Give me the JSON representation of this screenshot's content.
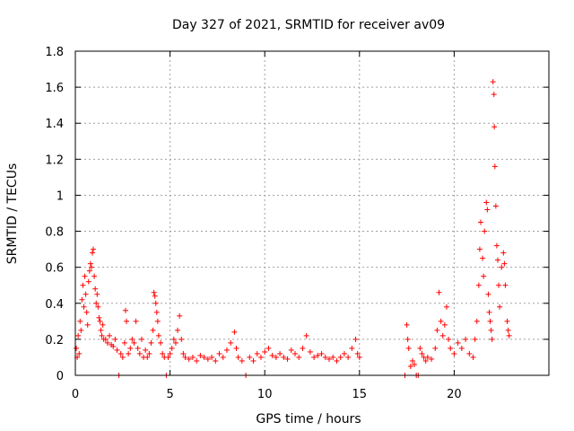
{
  "chart_data": {
    "type": "scatter",
    "title": "Day 327 of 2021, SRMTID for receiver av09",
    "xlabel": "GPS time / hours",
    "ylabel": "SRMTID / TECUs",
    "xlim": [
      0,
      25
    ],
    "ylim": [
      0,
      1.8
    ],
    "xticks": [
      0,
      5,
      10,
      15,
      20
    ],
    "xtick_labels": [
      "0",
      "5",
      "10",
      "15",
      "20"
    ],
    "yticks": [
      0,
      0.2,
      0.4,
      0.6,
      0.8,
      1.0,
      1.2,
      1.4,
      1.6,
      1.8
    ],
    "ytick_labels": [
      "0",
      "0.2",
      "0.4",
      "0.6",
      "0.8",
      "1",
      "1.2",
      "1.4",
      "1.6",
      "1.8"
    ],
    "grid": true,
    "marker": "+",
    "marker_color": "#ff0000",
    "series": [
      {
        "name": "SRMTID",
        "points": [
          [
            0.05,
            0.15
          ],
          [
            0.1,
            0.1
          ],
          [
            0.15,
            0.22
          ],
          [
            0.2,
            0.12
          ],
          [
            0.25,
            0.3
          ],
          [
            0.3,
            0.25
          ],
          [
            0.35,
            0.42
          ],
          [
            0.4,
            0.5
          ],
          [
            0.45,
            0.38
          ],
          [
            0.5,
            0.55
          ],
          [
            0.55,
            0.45
          ],
          [
            0.6,
            0.35
          ],
          [
            0.65,
            0.28
          ],
          [
            0.7,
            0.52
          ],
          [
            0.75,
            0.58
          ],
          [
            0.8,
            0.62
          ],
          [
            0.85,
            0.6
          ],
          [
            0.9,
            0.68
          ],
          [
            0.95,
            0.7
          ],
          [
            1.0,
            0.55
          ],
          [
            1.05,
            0.48
          ],
          [
            1.1,
            0.4
          ],
          [
            1.15,
            0.45
          ],
          [
            1.2,
            0.38
          ],
          [
            1.25,
            0.32
          ],
          [
            1.3,
            0.3
          ],
          [
            1.35,
            0.25
          ],
          [
            1.4,
            0.22
          ],
          [
            1.45,
            0.28
          ],
          [
            1.5,
            0.2
          ],
          [
            1.6,
            0.2
          ],
          [
            1.7,
            0.18
          ],
          [
            1.8,
            0.22
          ],
          [
            1.9,
            0.17
          ],
          [
            2.0,
            0.16
          ],
          [
            2.1,
            0.2
          ],
          [
            2.2,
            0.14
          ],
          [
            2.3,
            0.0
          ],
          [
            2.4,
            0.12
          ],
          [
            2.5,
            0.1
          ],
          [
            2.6,
            0.18
          ],
          [
            2.65,
            0.36
          ],
          [
            2.7,
            0.3
          ],
          [
            2.8,
            0.12
          ],
          [
            2.9,
            0.15
          ],
          [
            3.0,
            0.2
          ],
          [
            3.1,
            0.18
          ],
          [
            3.2,
            0.3
          ],
          [
            3.3,
            0.15
          ],
          [
            3.4,
            0.12
          ],
          [
            3.5,
            0.2
          ],
          [
            3.6,
            0.1
          ],
          [
            3.7,
            0.14
          ],
          [
            3.8,
            0.1
          ],
          [
            3.9,
            0.12
          ],
          [
            4.0,
            0.18
          ],
          [
            4.1,
            0.25
          ],
          [
            4.15,
            0.46
          ],
          [
            4.2,
            0.44
          ],
          [
            4.25,
            0.4
          ],
          [
            4.3,
            0.35
          ],
          [
            4.35,
            0.3
          ],
          [
            4.4,
            0.22
          ],
          [
            4.5,
            0.18
          ],
          [
            4.6,
            0.12
          ],
          [
            4.7,
            0.1
          ],
          [
            4.8,
            0.0
          ],
          [
            4.9,
            0.1
          ],
          [
            5.0,
            0.12
          ],
          [
            5.1,
            0.15
          ],
          [
            5.2,
            0.2
          ],
          [
            5.3,
            0.18
          ],
          [
            5.4,
            0.25
          ],
          [
            5.5,
            0.33
          ],
          [
            5.6,
            0.2
          ],
          [
            5.7,
            0.12
          ],
          [
            5.8,
            0.1
          ],
          [
            6.0,
            0.09
          ],
          [
            6.2,
            0.1
          ],
          [
            6.4,
            0.08
          ],
          [
            6.6,
            0.11
          ],
          [
            6.8,
            0.1
          ],
          [
            7.0,
            0.09
          ],
          [
            7.2,
            0.1
          ],
          [
            7.4,
            0.08
          ],
          [
            7.6,
            0.12
          ],
          [
            7.8,
            0.1
          ],
          [
            8.0,
            0.14
          ],
          [
            8.2,
            0.18
          ],
          [
            8.4,
            0.24
          ],
          [
            8.5,
            0.15
          ],
          [
            8.6,
            0.1
          ],
          [
            8.8,
            0.08
          ],
          [
            9.0,
            0.0
          ],
          [
            9.2,
            0.1
          ],
          [
            9.4,
            0.08
          ],
          [
            9.6,
            0.12
          ],
          [
            9.8,
            0.1
          ],
          [
            10.0,
            0.13
          ],
          [
            10.2,
            0.15
          ],
          [
            10.4,
            0.11
          ],
          [
            10.6,
            0.1
          ],
          [
            10.8,
            0.12
          ],
          [
            11.0,
            0.1
          ],
          [
            11.2,
            0.09
          ],
          [
            11.4,
            0.14
          ],
          [
            11.6,
            0.12
          ],
          [
            11.8,
            0.1
          ],
          [
            12.0,
            0.15
          ],
          [
            12.2,
            0.22
          ],
          [
            12.4,
            0.13
          ],
          [
            12.6,
            0.1
          ],
          [
            12.8,
            0.11
          ],
          [
            13.0,
            0.12
          ],
          [
            13.2,
            0.1
          ],
          [
            13.4,
            0.09
          ],
          [
            13.6,
            0.1
          ],
          [
            13.8,
            0.08
          ],
          [
            14.0,
            0.1
          ],
          [
            14.2,
            0.12
          ],
          [
            14.4,
            0.1
          ],
          [
            14.6,
            0.15
          ],
          [
            14.8,
            0.2
          ],
          [
            14.9,
            0.12
          ],
          [
            15.0,
            0.1
          ],
          [
            17.4,
            0.0
          ],
          [
            17.5,
            0.28
          ],
          [
            17.55,
            0.2
          ],
          [
            17.6,
            0.15
          ],
          [
            17.7,
            0.05
          ],
          [
            17.8,
            0.08
          ],
          [
            17.9,
            0.06
          ],
          [
            18.0,
            0.0
          ],
          [
            18.1,
            0.0
          ],
          [
            18.2,
            0.15
          ],
          [
            18.3,
            0.12
          ],
          [
            18.4,
            0.1
          ],
          [
            18.5,
            0.08
          ],
          [
            18.6,
            0.1
          ],
          [
            18.8,
            0.09
          ],
          [
            19.0,
            0.15
          ],
          [
            19.1,
            0.25
          ],
          [
            19.2,
            0.46
          ],
          [
            19.3,
            0.3
          ],
          [
            19.4,
            0.22
          ],
          [
            19.5,
            0.28
          ],
          [
            19.6,
            0.38
          ],
          [
            19.7,
            0.2
          ],
          [
            19.8,
            0.15
          ],
          [
            20.0,
            0.12
          ],
          [
            20.2,
            0.18
          ],
          [
            20.4,
            0.15
          ],
          [
            20.6,
            0.2
          ],
          [
            20.8,
            0.12
          ],
          [
            21.0,
            0.1
          ],
          [
            21.1,
            0.2
          ],
          [
            21.2,
            0.3
          ],
          [
            21.3,
            0.5
          ],
          [
            21.35,
            0.7
          ],
          [
            21.4,
            0.85
          ],
          [
            21.5,
            0.65
          ],
          [
            21.55,
            0.55
          ],
          [
            21.6,
            0.8
          ],
          [
            21.7,
            0.96
          ],
          [
            21.75,
            0.92
          ],
          [
            21.8,
            0.45
          ],
          [
            21.85,
            0.35
          ],
          [
            21.9,
            0.3
          ],
          [
            21.95,
            0.25
          ],
          [
            22.0,
            0.2
          ],
          [
            22.05,
            1.63
          ],
          [
            22.1,
            1.56
          ],
          [
            22.12,
            1.38
          ],
          [
            22.15,
            1.16
          ],
          [
            22.2,
            0.94
          ],
          [
            22.25,
            0.72
          ],
          [
            22.3,
            0.64
          ],
          [
            22.35,
            0.5
          ],
          [
            22.4,
            0.38
          ],
          [
            22.5,
            0.6
          ],
          [
            22.6,
            0.68
          ],
          [
            22.65,
            0.62
          ],
          [
            22.7,
            0.5
          ],
          [
            22.8,
            0.3
          ],
          [
            22.85,
            0.25
          ],
          [
            22.9,
            0.22
          ]
        ]
      }
    ]
  }
}
